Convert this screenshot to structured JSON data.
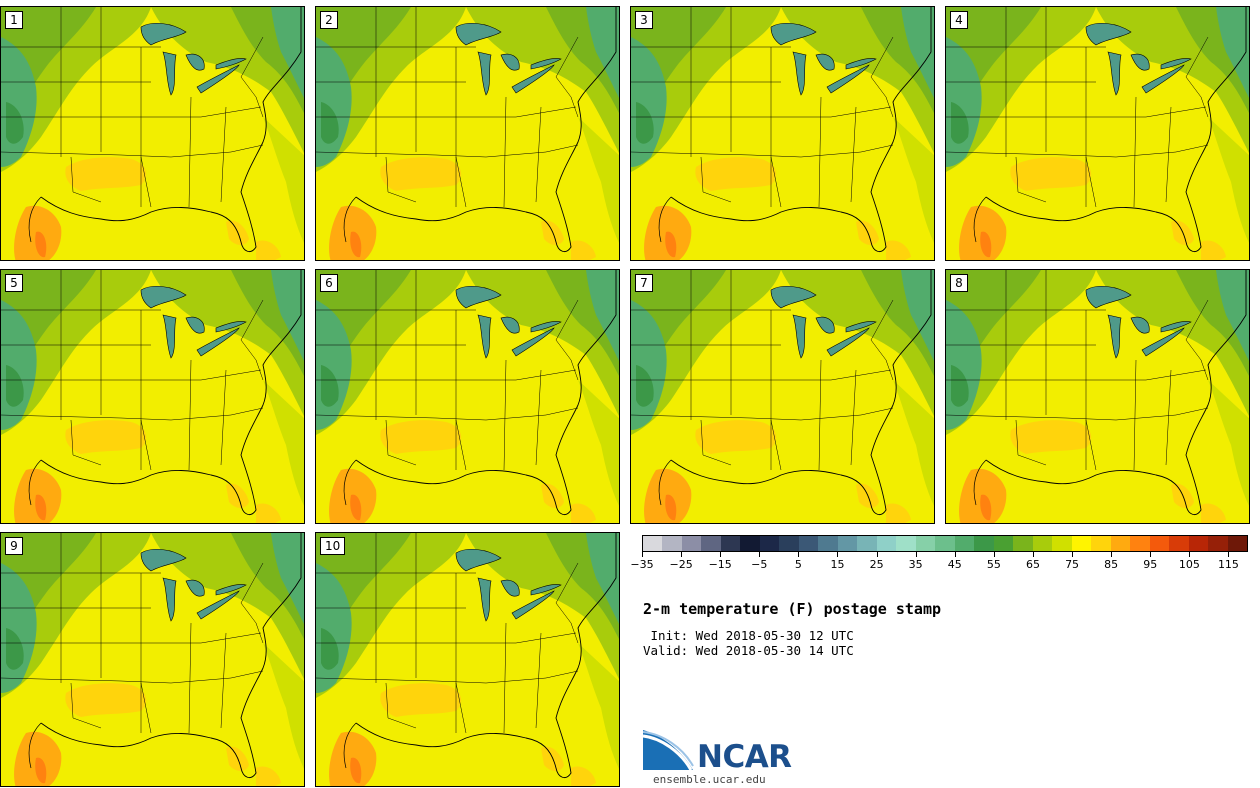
{
  "members": [
    "1",
    "2",
    "3",
    "4",
    "5",
    "6",
    "7",
    "8",
    "9",
    "10"
  ],
  "colorbar": {
    "colors": [
      "#d9d9dd",
      "#b3b5c3",
      "#8c8ea6",
      "#5f6682",
      "#2d3752",
      "#121a33",
      "#1c2848",
      "#2a3f5c",
      "#3b5876",
      "#4f7a90",
      "#6397a5",
      "#78b4b6",
      "#8fd0c8",
      "#9fe0c8",
      "#86d0a8",
      "#6cbf8c",
      "#52ac6c",
      "#3c9848",
      "#4aa032",
      "#7ab41c",
      "#a8cc0c",
      "#d0e000",
      "#fff400",
      "#ffd40c",
      "#ffaa10",
      "#ff8210",
      "#f45a0c",
      "#d83c08",
      "#b82606",
      "#962008",
      "#6e1808"
    ],
    "tick_labels": [
      "−35",
      "−25",
      "−15",
      "−5",
      "5",
      "15",
      "25",
      "35",
      "45",
      "55",
      "65",
      "75",
      "85",
      "95",
      "105",
      "115"
    ]
  },
  "title": "2-m temperature (F) postage stamp",
  "init": " Init: Wed 2018-05-30 12 UTC",
  "valid": "Valid: Wed 2018-05-30 14 UTC",
  "logo_text": "NCAR",
  "url": "ensemble.ucar.edu"
}
